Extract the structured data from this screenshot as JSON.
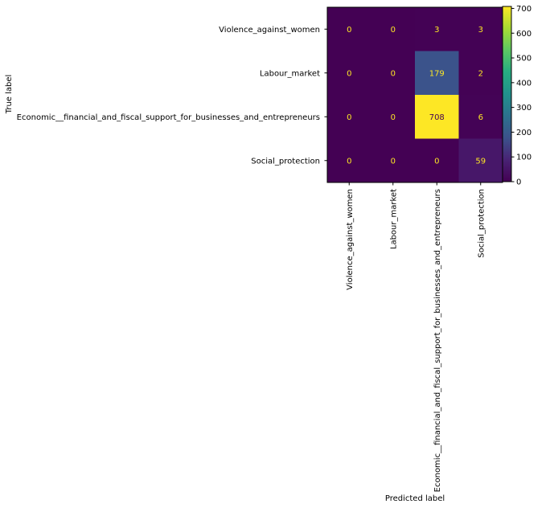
{
  "chart_data": {
    "type": "heatmap",
    "xlabel": "Predicted label",
    "ylabel": "True label",
    "row_labels": [
      "Violence_against_women",
      "Labour_market",
      "Economic__financial_and_fiscal_support_for_businesses_and_entrepreneurs",
      "Social_protection"
    ],
    "col_labels": [
      "Violence_against_women",
      "Labour_market",
      "Economic__financial_and_fiscal_support_for_businesses_and_entrepreneurs",
      "Social_protection"
    ],
    "values": [
      [
        0,
        0,
        3,
        3
      ],
      [
        0,
        0,
        179,
        2
      ],
      [
        0,
        0,
        708,
        6
      ],
      [
        0,
        0,
        0,
        59
      ]
    ],
    "colormap": "viridis",
    "colorbar": {
      "min": 0,
      "max": 708,
      "ticks": [
        0,
        100,
        200,
        300,
        400,
        500,
        600,
        700
      ]
    },
    "text_colors": {
      "on_dark": "#fde725",
      "on_light": "#440154"
    }
  }
}
